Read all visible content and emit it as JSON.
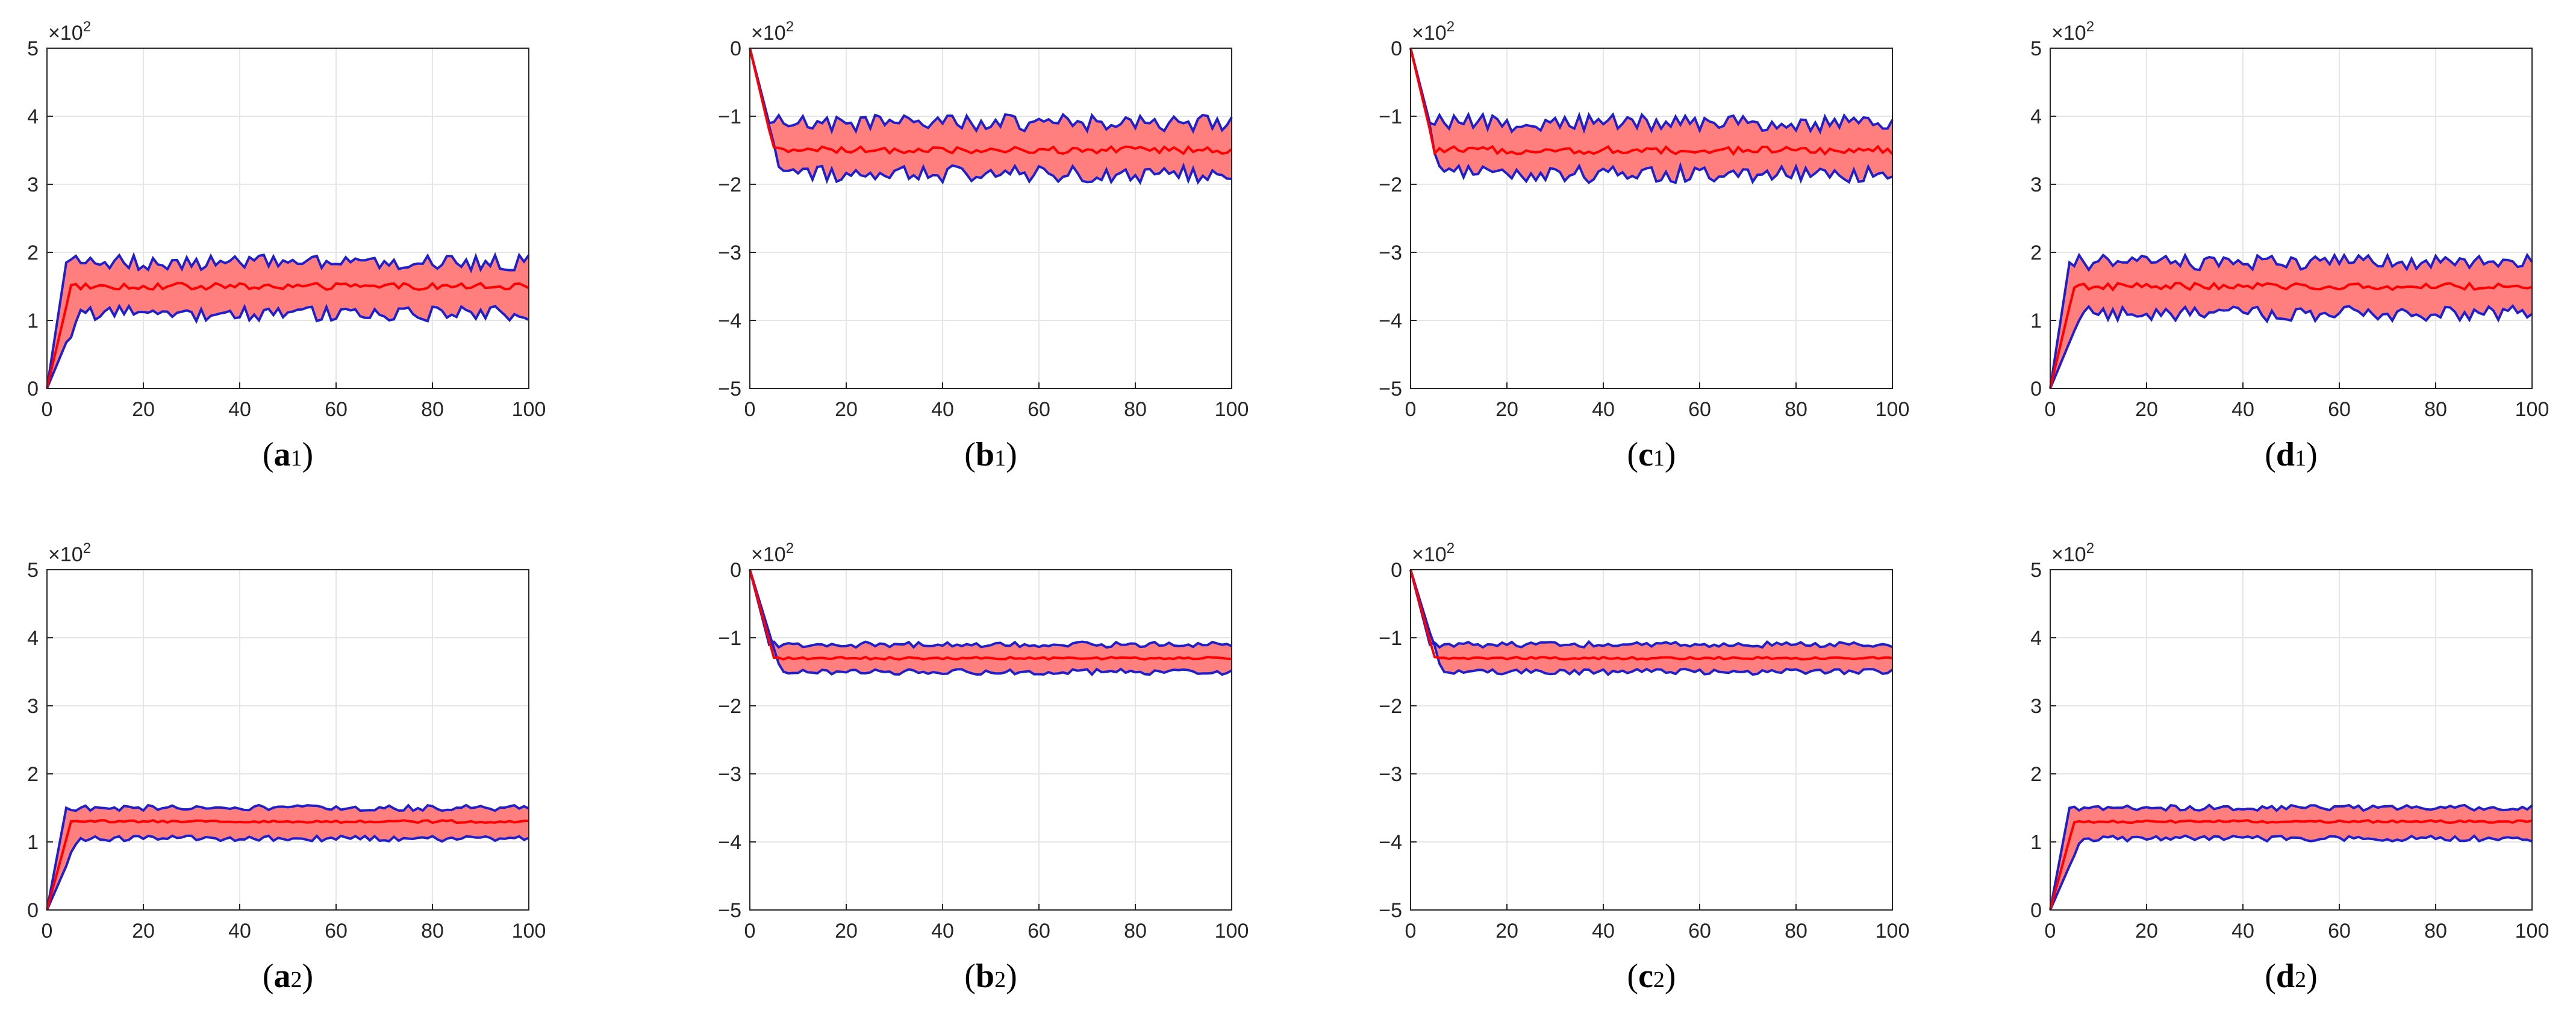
{
  "colors": {
    "band_fill": "#ff7f7f",
    "band_edge": "#1f1fcc",
    "mean_line": "#ff0000",
    "grid": "#e6e6e6",
    "axes": "#262626"
  },
  "chart_data": [
    {
      "id": "a1",
      "type": "line",
      "panel_label": {
        "letter": "a",
        "subscript": "1"
      },
      "scale_label": {
        "base": "×10",
        "exponent": "2"
      },
      "xlim": [
        0,
        100
      ],
      "ylim": [
        0,
        5
      ],
      "xticks": [
        0,
        20,
        40,
        60,
        80,
        100
      ],
      "yticks": [
        0,
        1,
        2,
        3,
        4,
        5
      ],
      "grid": true,
      "series": [
        {
          "name": "mean",
          "level": 1.5
        },
        {
          "name": "upper",
          "level": 1.85
        },
        {
          "name": "lower",
          "level": 1.1
        }
      ],
      "start_value": 0,
      "settle_x": 5,
      "noise": 0.08
    },
    {
      "id": "b1",
      "type": "line",
      "panel_label": {
        "letter": "b",
        "subscript": "1"
      },
      "scale_label": {
        "base": "×10",
        "exponent": "2"
      },
      "xlim": [
        0,
        100
      ],
      "ylim": [
        -5,
        0
      ],
      "xticks": [
        0,
        20,
        40,
        60,
        80,
        100
      ],
      "yticks": [
        -5,
        -4,
        -3,
        -2,
        -1,
        0
      ],
      "grid": true,
      "series": [
        {
          "name": "mean",
          "level": -1.5
        },
        {
          "name": "upper",
          "level": -1.1
        },
        {
          "name": "lower",
          "level": -1.85
        }
      ],
      "start_value": 0,
      "settle_x": 5,
      "noise": 0.09
    },
    {
      "id": "c1",
      "type": "line",
      "panel_label": {
        "letter": "c",
        "subscript": "1"
      },
      "scale_label": {
        "base": "×10",
        "exponent": "2"
      },
      "xlim": [
        0,
        100
      ],
      "ylim": [
        -5,
        0
      ],
      "xticks": [
        0,
        20,
        40,
        60,
        80,
        100
      ],
      "yticks": [
        -5,
        -4,
        -3,
        -2,
        -1,
        0
      ],
      "grid": true,
      "series": [
        {
          "name": "mean",
          "level": -1.5
        },
        {
          "name": "upper",
          "level": -1.1
        },
        {
          "name": "lower",
          "level": -1.85
        }
      ],
      "start_value": 0,
      "settle_x": 5,
      "noise": 0.09
    },
    {
      "id": "d1",
      "type": "line",
      "panel_label": {
        "letter": "d",
        "subscript": "1"
      },
      "scale_label": {
        "base": "×10",
        "exponent": "2"
      },
      "xlim": [
        0,
        100
      ],
      "ylim": [
        0,
        5
      ],
      "xticks": [
        0,
        20,
        40,
        60,
        80,
        100
      ],
      "yticks": [
        0,
        1,
        2,
        3,
        4,
        5
      ],
      "grid": true,
      "series": [
        {
          "name": "mean",
          "level": 1.5
        },
        {
          "name": "upper",
          "level": 1.85
        },
        {
          "name": "lower",
          "level": 1.1
        }
      ],
      "start_value": 0,
      "settle_x": 5,
      "noise": 0.08
    },
    {
      "id": "a2",
      "type": "line",
      "panel_label": {
        "letter": "a",
        "subscript": "2"
      },
      "scale_label": {
        "base": "×10",
        "exponent": "2"
      },
      "xlim": [
        0,
        100
      ],
      "ylim": [
        0,
        5
      ],
      "xticks": [
        0,
        20,
        40,
        60,
        80,
        100
      ],
      "yticks": [
        0,
        1,
        2,
        3,
        4,
        5
      ],
      "grid": true,
      "series": [
        {
          "name": "mean",
          "level": 1.3
        },
        {
          "name": "upper",
          "level": 1.5
        },
        {
          "name": "lower",
          "level": 1.05
        }
      ],
      "start_value": 0,
      "settle_x": 5,
      "noise": 0.03
    },
    {
      "id": "b2",
      "type": "line",
      "panel_label": {
        "letter": "b",
        "subscript": "2"
      },
      "scale_label": {
        "base": "×10",
        "exponent": "2"
      },
      "xlim": [
        0,
        100
      ],
      "ylim": [
        -5,
        0
      ],
      "xticks": [
        0,
        20,
        40,
        60,
        80,
        100
      ],
      "yticks": [
        -5,
        -4,
        -3,
        -2,
        -1,
        0
      ],
      "grid": true,
      "series": [
        {
          "name": "mean",
          "level": -1.3
        },
        {
          "name": "upper",
          "level": -1.1
        },
        {
          "name": "lower",
          "level": -1.5
        }
      ],
      "start_value": 0,
      "settle_x": 5,
      "noise": 0.03
    },
    {
      "id": "c2",
      "type": "line",
      "panel_label": {
        "letter": "c",
        "subscript": "2"
      },
      "scale_label": {
        "base": "×10",
        "exponent": "2"
      },
      "xlim": [
        0,
        100
      ],
      "ylim": [
        -5,
        0
      ],
      "xticks": [
        0,
        20,
        40,
        60,
        80,
        100
      ],
      "yticks": [
        -5,
        -4,
        -3,
        -2,
        -1,
        0
      ],
      "grid": true,
      "series": [
        {
          "name": "mean",
          "level": -1.3
        },
        {
          "name": "upper",
          "level": -1.1
        },
        {
          "name": "lower",
          "level": -1.5
        }
      ],
      "start_value": 0,
      "settle_x": 5,
      "noise": 0.03
    },
    {
      "id": "d2",
      "type": "line",
      "panel_label": {
        "letter": "d",
        "subscript": "2"
      },
      "scale_label": {
        "base": "×10",
        "exponent": "2"
      },
      "xlim": [
        0,
        100
      ],
      "ylim": [
        0,
        5
      ],
      "xticks": [
        0,
        20,
        40,
        60,
        80,
        100
      ],
      "yticks": [
        0,
        1,
        2,
        3,
        4,
        5
      ],
      "grid": true,
      "series": [
        {
          "name": "mean",
          "level": 1.3
        },
        {
          "name": "upper",
          "level": 1.5
        },
        {
          "name": "lower",
          "level": 1.05
        }
      ],
      "start_value": 0,
      "settle_x": 5,
      "noise": 0.03
    }
  ]
}
